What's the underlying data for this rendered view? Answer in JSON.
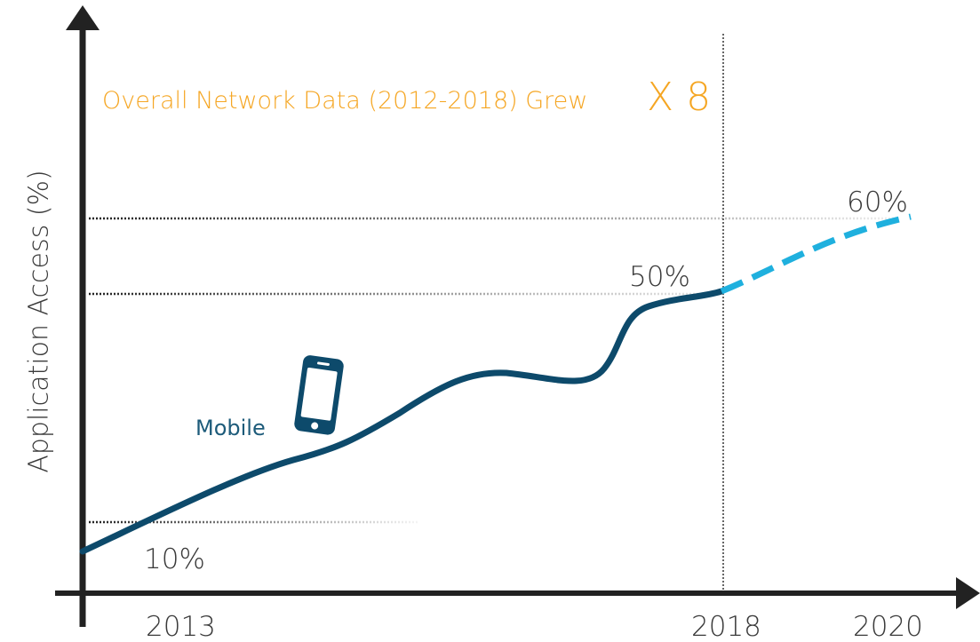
{
  "axis": {
    "y_label": "Application Access (%)"
  },
  "annotation": {
    "text": "Overall Network Data (2012-2018)  Grew",
    "emphasis": "X 8"
  },
  "levels": [
    "10%",
    "50%",
    "60%"
  ],
  "years": [
    "2013",
    "2018",
    "2020"
  ],
  "device": {
    "label": "Mobile"
  }
}
